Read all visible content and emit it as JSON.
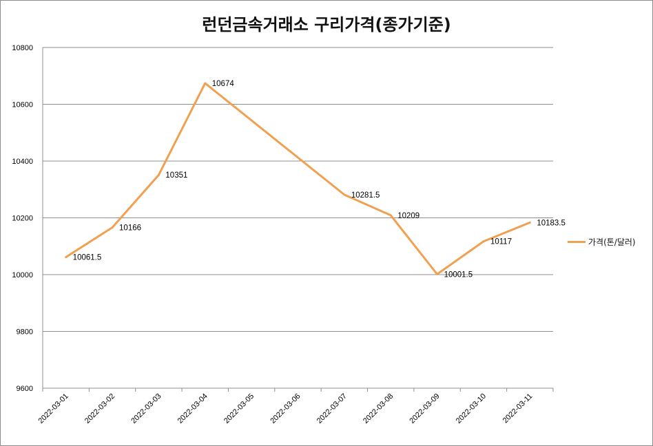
{
  "chart_data": {
    "type": "line",
    "title": "런던금속거래소 구리가격(종가기준)",
    "xlabel": "",
    "ylabel": "",
    "ylim": [
      9600,
      10800
    ],
    "yticks": [
      "9600",
      "9800",
      "10000",
      "10200",
      "10400",
      "10600",
      "10800"
    ],
    "grid": true,
    "legend_position": "right",
    "categories": [
      "2022-03-01",
      "2022-03-02",
      "2022-03-03",
      "2022-03-04",
      "2022-03-05",
      "2022-03-06",
      "2022-03-07",
      "2022-03-08",
      "2022-03-09",
      "2022-03-10",
      "2022-03-11"
    ],
    "series": [
      {
        "name": "가격(톤/달러)",
        "color": "#f0a050",
        "points": [
          {
            "x": "2022-03-01",
            "y": 10061.5,
            "label": "10061.5"
          },
          {
            "x": "2022-03-02",
            "y": 10166,
            "label": "10166"
          },
          {
            "x": "2022-03-03",
            "y": 10351,
            "label": "10351"
          },
          {
            "x": "2022-03-04",
            "y": 10674,
            "label": "10674"
          },
          {
            "x": "2022-03-07",
            "y": 10281.5,
            "label": "10281.5"
          },
          {
            "x": "2022-03-08",
            "y": 10209,
            "label": "10209"
          },
          {
            "x": "2022-03-09",
            "y": 10001.5,
            "label": "10001.5"
          },
          {
            "x": "2022-03-10",
            "y": 10117,
            "label": "10117"
          },
          {
            "x": "2022-03-11",
            "y": 10183.5,
            "label": "10183.5"
          }
        ]
      }
    ]
  }
}
